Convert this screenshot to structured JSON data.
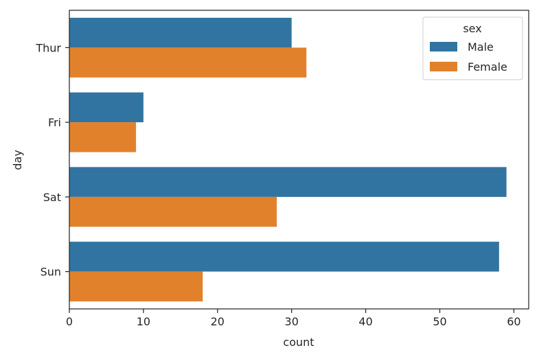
{
  "chart_data": {
    "type": "bar",
    "orientation": "horizontal",
    "categories": [
      "Thur",
      "Fri",
      "Sat",
      "Sun"
    ],
    "series": [
      {
        "name": "Male",
        "values": [
          30,
          10,
          59,
          58
        ],
        "color": "#3274a1"
      },
      {
        "name": "Female",
        "values": [
          32,
          9,
          28,
          18
        ],
        "color": "#e1812c"
      }
    ],
    "xlabel": "count",
    "ylabel": "day",
    "xlim": [
      0,
      62
    ],
    "xticks": [
      0,
      10,
      20,
      30,
      40,
      50,
      60
    ],
    "grid": false,
    "legend": {
      "title": "sex",
      "position": "top-right"
    }
  }
}
